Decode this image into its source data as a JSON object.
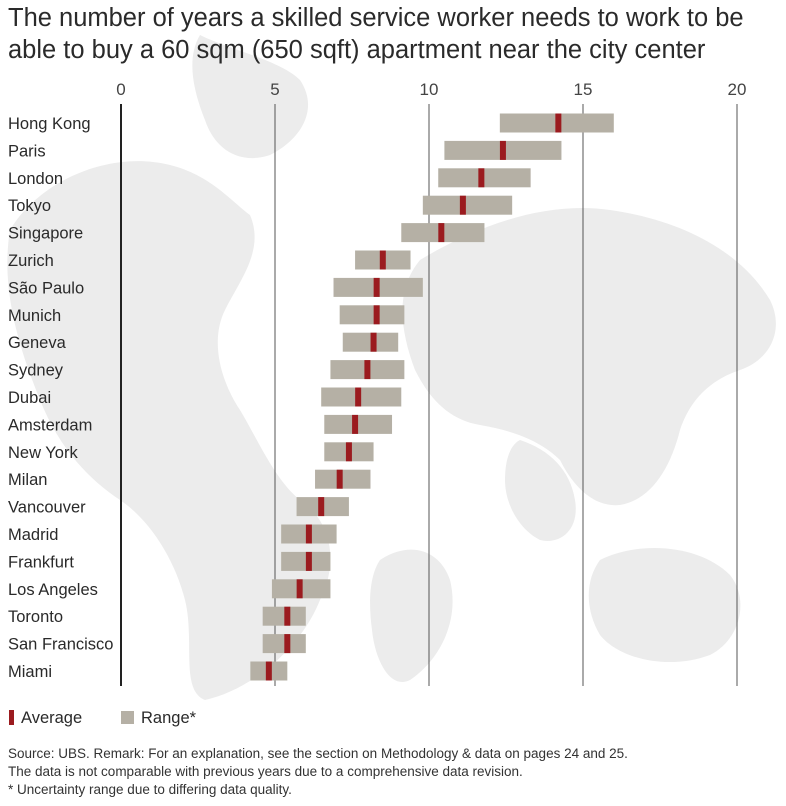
{
  "chart_data": {
    "type": "bar",
    "title_lines": [
      "The number of years a skilled service worker needs to work to be",
      "able to buy a 60 sqm (650 sqft) apartment near the city center"
    ],
    "x_ticks": [
      0,
      5,
      10,
      15,
      20
    ],
    "xlim": [
      0,
      20
    ],
    "grid": true,
    "legend": {
      "placement": "bottom-left",
      "average_label": "Average",
      "range_label": "Range*"
    },
    "colors": {
      "average": "#9b1b1f",
      "range": "#b5b0a5",
      "axis": "#333333",
      "map": "#ececec"
    },
    "categories": [
      "Hong Kong",
      "Paris",
      "London",
      "Tokyo",
      "Singapore",
      "Zurich",
      "São Paulo",
      "Munich",
      "Geneva",
      "Sydney",
      "Dubai",
      "Amsterdam",
      "New York",
      "Milan",
      "Vancouver",
      "Madrid",
      "Frankfurt",
      "Los Angeles",
      "Toronto",
      "San Francisco",
      "Miami"
    ],
    "series": [
      {
        "name": "Range*",
        "values": [
          [
            12.3,
            16.0
          ],
          [
            10.5,
            14.3
          ],
          [
            10.3,
            13.3
          ],
          [
            9.8,
            12.7
          ],
          [
            9.1,
            11.8
          ],
          [
            7.6,
            9.4
          ],
          [
            6.9,
            9.8
          ],
          [
            7.1,
            9.2
          ],
          [
            7.2,
            9.0
          ],
          [
            6.8,
            9.2
          ],
          [
            6.5,
            9.1
          ],
          [
            6.6,
            8.8
          ],
          [
            6.6,
            8.2
          ],
          [
            6.3,
            8.1
          ],
          [
            5.7,
            7.4
          ],
          [
            5.2,
            7.0
          ],
          [
            5.2,
            6.8
          ],
          [
            4.9,
            6.8
          ],
          [
            4.6,
            6.0
          ],
          [
            4.6,
            6.0
          ],
          [
            4.2,
            5.4
          ]
        ]
      },
      {
        "name": "Average",
        "values": [
          14.2,
          12.4,
          11.7,
          11.1,
          10.4,
          8.5,
          8.3,
          8.3,
          8.2,
          8.0,
          7.7,
          7.6,
          7.4,
          7.1,
          6.5,
          6.1,
          6.1,
          5.8,
          5.4,
          5.4,
          4.8
        ]
      }
    ]
  },
  "footer": {
    "source": "Source: UBS. Remark: For an explanation, see the section on Methodology & data on pages 24 and 25.",
    "line2": "The data is not comparable with previous years due to a comprehensive data revision.",
    "line3": "* Uncertainty range due to differing data quality."
  }
}
